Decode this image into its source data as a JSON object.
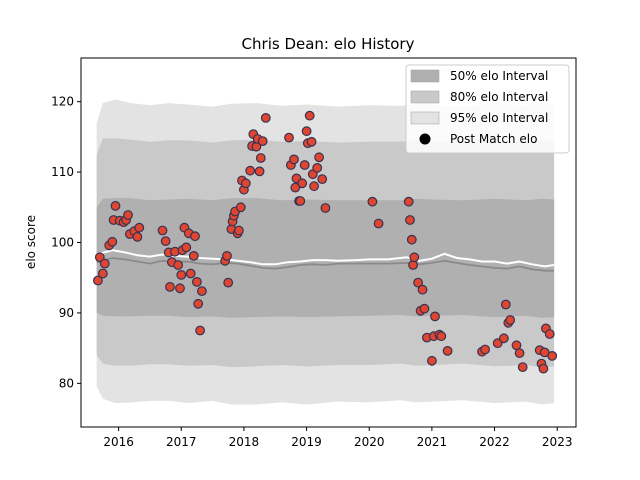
{
  "chart_data": {
    "type": "scatter",
    "title": "Chris Dean: elo History",
    "xlabel": "",
    "ylabel": "elo score",
    "xlim": [
      2015.4,
      2023.3
    ],
    "ylim": [
      73.8,
      126.2
    ],
    "x_ticks": [
      2016,
      2017,
      2018,
      2019,
      2020,
      2021,
      2022,
      2023
    ],
    "y_ticks": [
      80,
      90,
      100,
      110,
      120
    ],
    "grid": false,
    "legend_position": "top-right",
    "colors": {
      "band_50": "#b0b0b0",
      "band_80": "#c9c9c9",
      "band_95": "#e3e3e3",
      "median_line": "#8a8a8a",
      "mean_line": "#ffffff",
      "point_fill": "#e0452f",
      "point_edge": "#333355"
    },
    "legend": [
      {
        "label": "50% elo Interval",
        "kind": "band",
        "color": "#b0b0b0"
      },
      {
        "label": "80% elo Interval",
        "kind": "band",
        "color": "#c9c9c9"
      },
      {
        "label": "95% elo Interval",
        "kind": "band",
        "color": "#e3e3e3"
      },
      {
        "label": "Post Match elo",
        "kind": "marker",
        "color": "#000000"
      }
    ],
    "bands": {
      "x": [
        2015.65,
        2015.75,
        2015.95,
        2016.2,
        2016.5,
        2016.8,
        2017.1,
        2017.5,
        2017.8,
        2018.2,
        2018.6,
        2019.0,
        2019.5,
        2020.0,
        2020.5,
        2020.75,
        2021.0,
        2021.5,
        2022.0,
        2022.5,
        2022.75,
        2022.95
      ],
      "p95_low": [
        79.5,
        77.8,
        77.2,
        77.3,
        77.5,
        77.5,
        77.2,
        77.5,
        77.0,
        77.0,
        77.3,
        77.0,
        77.4,
        77.3,
        77.6,
        77.3,
        77.4,
        77.6,
        77.2,
        77.4,
        77.0,
        77.2
      ],
      "p80_low": [
        84.0,
        82.8,
        82.5,
        82.5,
        82.7,
        82.7,
        82.5,
        82.6,
        82.3,
        82.4,
        82.6,
        82.4,
        82.6,
        82.6,
        82.8,
        82.5,
        82.6,
        82.8,
        82.4,
        82.6,
        82.3,
        82.4
      ],
      "p50_low": [
        90.0,
        89.6,
        89.5,
        89.5,
        89.6,
        89.6,
        89.4,
        89.5,
        89.3,
        89.4,
        89.5,
        89.4,
        89.5,
        89.6,
        89.7,
        89.5,
        89.6,
        89.7,
        89.4,
        89.6,
        89.3,
        89.4
      ],
      "p50_high": [
        105.0,
        106.2,
        106.3,
        106.3,
        106.0,
        106.1,
        106.2,
        106.0,
        106.3,
        106.3,
        106.0,
        106.1,
        106.0,
        106.0,
        106.0,
        106.2,
        106.1,
        106.0,
        106.2,
        106.0,
        106.2,
        106.1
      ],
      "p80_high": [
        112.5,
        114.8,
        114.8,
        114.6,
        114.3,
        114.5,
        114.5,
        114.2,
        114.5,
        114.6,
        114.3,
        114.4,
        114.2,
        114.3,
        114.3,
        114.5,
        114.4,
        114.2,
        114.5,
        114.3,
        114.5,
        114.4
      ],
      "p95_high": [
        117.0,
        119.8,
        120.3,
        119.8,
        119.5,
        119.8,
        119.6,
        119.3,
        119.7,
        119.8,
        119.4,
        119.6,
        119.3,
        119.5,
        119.4,
        119.7,
        119.5,
        119.3,
        119.7,
        119.5,
        119.8,
        119.6
      ]
    },
    "median_line": {
      "x": [
        2015.65,
        2015.9,
        2016.1,
        2016.3,
        2016.5,
        2016.7,
        2016.9,
        2017.1,
        2017.3,
        2017.5,
        2017.7,
        2017.9,
        2018.1,
        2018.3,
        2018.5,
        2018.7,
        2018.9,
        2019.1,
        2019.3,
        2019.5,
        2019.8,
        2020.0,
        2020.3,
        2020.6,
        2020.8,
        2021.0,
        2021.2,
        2021.4,
        2021.6,
        2021.8,
        2022.0,
        2022.2,
        2022.4,
        2022.6,
        2022.8,
        2022.95
      ],
      "y": [
        97.2,
        97.8,
        97.6,
        97.3,
        97.0,
        97.4,
        97.2,
        97.3,
        97.0,
        96.9,
        97.1,
        97.0,
        96.7,
        96.4,
        96.3,
        96.5,
        96.8,
        96.9,
        96.8,
        97.0,
        97.0,
        97.0,
        97.0,
        97.1,
        96.9,
        97.1,
        97.4,
        97.1,
        96.8,
        96.6,
        96.4,
        96.3,
        96.6,
        96.2,
        96.0,
        96.0
      ]
    },
    "mean_line": {
      "x": [
        2015.65,
        2015.9,
        2016.1,
        2016.3,
        2016.5,
        2016.7,
        2016.9,
        2017.1,
        2017.3,
        2017.5,
        2017.7,
        2017.9,
        2018.1,
        2018.3,
        2018.5,
        2018.7,
        2018.9,
        2019.1,
        2019.3,
        2019.5,
        2019.8,
        2020.0,
        2020.3,
        2020.6,
        2020.8,
        2021.0,
        2021.2,
        2021.4,
        2021.6,
        2021.8,
        2022.0,
        2022.2,
        2022.4,
        2022.6,
        2022.8,
        2022.95
      ],
      "y": [
        98.3,
        98.9,
        98.6,
        98.2,
        98.0,
        98.3,
        98.1,
        98.0,
        97.8,
        97.7,
        97.6,
        97.4,
        97.2,
        96.9,
        96.9,
        97.2,
        97.3,
        97.5,
        97.5,
        97.4,
        97.5,
        97.6,
        97.6,
        97.9,
        97.4,
        97.7,
        98.4,
        97.8,
        97.6,
        97.3,
        97.3,
        97.0,
        97.3,
        96.9,
        96.6,
        96.8
      ]
    },
    "points": [
      {
        "x": 2015.67,
        "y": 94.6
      },
      {
        "x": 2015.7,
        "y": 97.9
      },
      {
        "x": 2015.75,
        "y": 95.6
      },
      {
        "x": 2015.78,
        "y": 97.0
      },
      {
        "x": 2015.85,
        "y": 99.6
      },
      {
        "x": 2015.9,
        "y": 100.1
      },
      {
        "x": 2015.92,
        "y": 103.2
      },
      {
        "x": 2015.95,
        "y": 105.2
      },
      {
        "x": 2016.02,
        "y": 103.1
      },
      {
        "x": 2016.08,
        "y": 102.9
      },
      {
        "x": 2016.12,
        "y": 103.2
      },
      {
        "x": 2016.15,
        "y": 103.9
      },
      {
        "x": 2016.18,
        "y": 101.2
      },
      {
        "x": 2016.25,
        "y": 101.6
      },
      {
        "x": 2016.3,
        "y": 100.8
      },
      {
        "x": 2016.33,
        "y": 102.1
      },
      {
        "x": 2016.7,
        "y": 101.7
      },
      {
        "x": 2016.75,
        "y": 100.2
      },
      {
        "x": 2016.8,
        "y": 98.6
      },
      {
        "x": 2016.82,
        "y": 93.7
      },
      {
        "x": 2016.85,
        "y": 97.2
      },
      {
        "x": 2016.9,
        "y": 98.7
      },
      {
        "x": 2016.95,
        "y": 96.8
      },
      {
        "x": 2016.98,
        "y": 93.5
      },
      {
        "x": 2017.0,
        "y": 95.4
      },
      {
        "x": 2017.02,
        "y": 98.9
      },
      {
        "x": 2017.05,
        "y": 102.1
      },
      {
        "x": 2017.08,
        "y": 99.3
      },
      {
        "x": 2017.12,
        "y": 101.3
      },
      {
        "x": 2017.15,
        "y": 95.6
      },
      {
        "x": 2017.2,
        "y": 98.1
      },
      {
        "x": 2017.22,
        "y": 100.9
      },
      {
        "x": 2017.25,
        "y": 94.4
      },
      {
        "x": 2017.27,
        "y": 91.3
      },
      {
        "x": 2017.3,
        "y": 87.5
      },
      {
        "x": 2017.33,
        "y": 93.1
      },
      {
        "x": 2017.7,
        "y": 97.4
      },
      {
        "x": 2017.73,
        "y": 98.1
      },
      {
        "x": 2017.75,
        "y": 94.3
      },
      {
        "x": 2017.8,
        "y": 101.9
      },
      {
        "x": 2017.82,
        "y": 103.0
      },
      {
        "x": 2017.84,
        "y": 103.8
      },
      {
        "x": 2017.86,
        "y": 104.4
      },
      {
        "x": 2017.9,
        "y": 101.3
      },
      {
        "x": 2017.92,
        "y": 101.7
      },
      {
        "x": 2017.95,
        "y": 105.0
      },
      {
        "x": 2017.97,
        "y": 108.8
      },
      {
        "x": 2018.0,
        "y": 107.5
      },
      {
        "x": 2018.03,
        "y": 108.4
      },
      {
        "x": 2018.1,
        "y": 110.2
      },
      {
        "x": 2018.13,
        "y": 113.7
      },
      {
        "x": 2018.15,
        "y": 115.4
      },
      {
        "x": 2018.2,
        "y": 113.6
      },
      {
        "x": 2018.22,
        "y": 114.7
      },
      {
        "x": 2018.25,
        "y": 110.1
      },
      {
        "x": 2018.27,
        "y": 112.0
      },
      {
        "x": 2018.3,
        "y": 114.4
      },
      {
        "x": 2018.35,
        "y": 117.7
      },
      {
        "x": 2018.72,
        "y": 114.9
      },
      {
        "x": 2018.75,
        "y": 111.0
      },
      {
        "x": 2018.8,
        "y": 111.8
      },
      {
        "x": 2018.82,
        "y": 107.8
      },
      {
        "x": 2018.84,
        "y": 109.1
      },
      {
        "x": 2018.88,
        "y": 105.9
      },
      {
        "x": 2018.9,
        "y": 105.9
      },
      {
        "x": 2018.93,
        "y": 108.4
      },
      {
        "x": 2018.97,
        "y": 111.0
      },
      {
        "x": 2019.0,
        "y": 115.8
      },
      {
        "x": 2019.02,
        "y": 114.1
      },
      {
        "x": 2019.05,
        "y": 118.0
      },
      {
        "x": 2019.08,
        "y": 114.3
      },
      {
        "x": 2019.1,
        "y": 109.7
      },
      {
        "x": 2019.12,
        "y": 108.0
      },
      {
        "x": 2019.17,
        "y": 110.6
      },
      {
        "x": 2019.2,
        "y": 112.1
      },
      {
        "x": 2019.25,
        "y": 109.0
      },
      {
        "x": 2019.3,
        "y": 104.9
      },
      {
        "x": 2020.05,
        "y": 105.8
      },
      {
        "x": 2020.15,
        "y": 102.7
      },
      {
        "x": 2020.63,
        "y": 105.8
      },
      {
        "x": 2020.65,
        "y": 103.2
      },
      {
        "x": 2020.68,
        "y": 100.4
      },
      {
        "x": 2020.7,
        "y": 96.8
      },
      {
        "x": 2020.72,
        "y": 97.9
      },
      {
        "x": 2020.78,
        "y": 94.3
      },
      {
        "x": 2020.82,
        "y": 90.3
      },
      {
        "x": 2020.85,
        "y": 93.3
      },
      {
        "x": 2020.88,
        "y": 90.6
      },
      {
        "x": 2020.92,
        "y": 86.5
      },
      {
        "x": 2021.0,
        "y": 83.2
      },
      {
        "x": 2021.03,
        "y": 86.7
      },
      {
        "x": 2021.05,
        "y": 89.5
      },
      {
        "x": 2021.12,
        "y": 86.9
      },
      {
        "x": 2021.15,
        "y": 86.7
      },
      {
        "x": 2021.25,
        "y": 84.6
      },
      {
        "x": 2021.8,
        "y": 84.5
      },
      {
        "x": 2021.85,
        "y": 84.8
      },
      {
        "x": 2022.05,
        "y": 85.7
      },
      {
        "x": 2022.15,
        "y": 86.4
      },
      {
        "x": 2022.18,
        "y": 91.2
      },
      {
        "x": 2022.22,
        "y": 88.6
      },
      {
        "x": 2022.25,
        "y": 89.0
      },
      {
        "x": 2022.35,
        "y": 85.4
      },
      {
        "x": 2022.4,
        "y": 84.3
      },
      {
        "x": 2022.45,
        "y": 82.3
      },
      {
        "x": 2022.72,
        "y": 84.7
      },
      {
        "x": 2022.75,
        "y": 82.8
      },
      {
        "x": 2022.78,
        "y": 82.1
      },
      {
        "x": 2022.8,
        "y": 84.4
      },
      {
        "x": 2022.82,
        "y": 87.8
      },
      {
        "x": 2022.88,
        "y": 87.0
      },
      {
        "x": 2022.92,
        "y": 83.9
      }
    ]
  }
}
